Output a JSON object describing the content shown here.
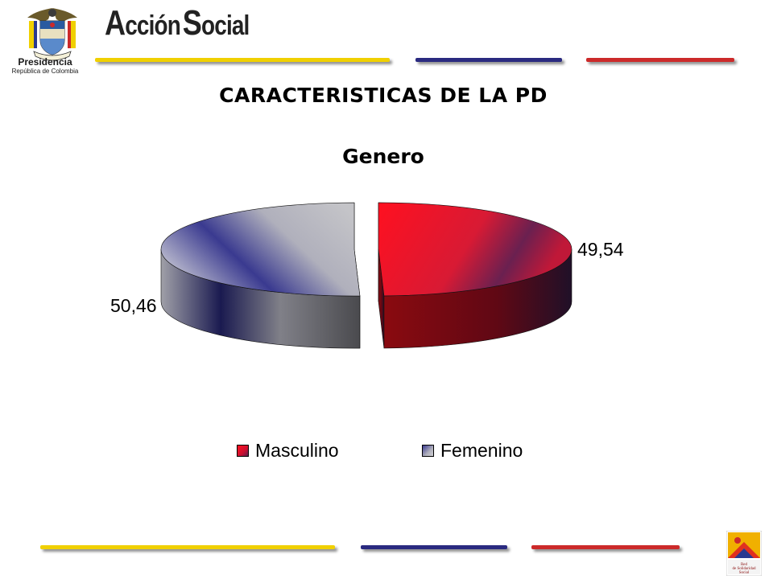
{
  "header": {
    "emblem_text": "Libertad y Orden",
    "presidencia": "Presidencia",
    "republica": "República de Colombia",
    "logo_first": "A",
    "logo_rest1": "cción",
    "logo_second": "S",
    "logo_rest2": "ocial",
    "red_logo_text": "Red de Solidaridad Social"
  },
  "titles": {
    "main": "CARACTERISTICAS DE LA PD",
    "sub": "Genero"
  },
  "colors": {
    "yellow_bar": "#f0d000",
    "blue_bar": "#2a2a80",
    "red_bar": "#cc2a2a",
    "masculino": "#ee1122",
    "femenino": "#c0c0c8"
  },
  "chart_data": {
    "type": "pie",
    "title": "Genero",
    "slices": [
      {
        "name": "Masculino",
        "value": 49.54,
        "label": "49,54"
      },
      {
        "name": "Femenino",
        "value": 50.46,
        "label": "50,46"
      }
    ],
    "legend": [
      "Masculino",
      "Femenino"
    ],
    "legend_position": "bottom",
    "style": "3d-exploded"
  }
}
